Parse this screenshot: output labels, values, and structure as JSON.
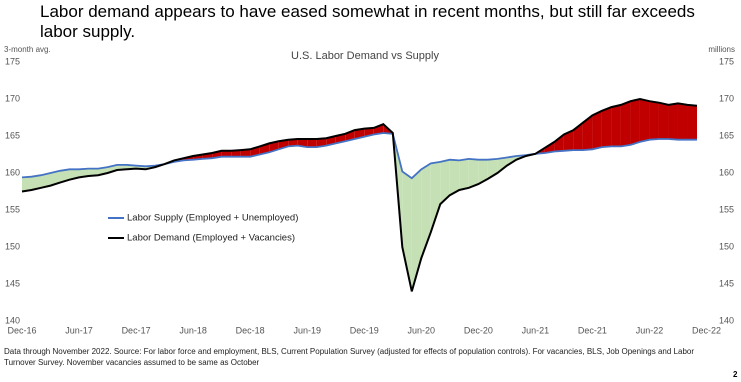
{
  "heading": "Labor demand appears to have eased somewhat in recent months, but still far exceeds labor supply.",
  "chart_data": {
    "type": "line",
    "title": "U.S. Labor Demand vs Supply",
    "y_label": "3-month avg.",
    "y2_label": "millions",
    "x": [
      "Dec-16",
      "Jan-17",
      "Feb-17",
      "Mar-17",
      "Apr-17",
      "May-17",
      "Jun-17",
      "Jul-17",
      "Aug-17",
      "Sep-17",
      "Oct-17",
      "Nov-17",
      "Dec-17",
      "Jan-18",
      "Feb-18",
      "Mar-18",
      "Apr-18",
      "May-18",
      "Jun-18",
      "Jul-18",
      "Aug-18",
      "Sep-18",
      "Oct-18",
      "Nov-18",
      "Dec-18",
      "Jan-19",
      "Feb-19",
      "Mar-19",
      "Apr-19",
      "May-19",
      "Jun-19",
      "Jul-19",
      "Aug-19",
      "Sep-19",
      "Oct-19",
      "Nov-19",
      "Dec-19",
      "Jan-20",
      "Feb-20",
      "Mar-20",
      "Apr-20",
      "May-20",
      "Jun-20",
      "Jul-20",
      "Aug-20",
      "Sep-20",
      "Oct-20",
      "Nov-20",
      "Dec-20",
      "Jan-21",
      "Feb-21",
      "Mar-21",
      "Apr-21",
      "May-21",
      "Jun-21",
      "Jul-21",
      "Aug-21",
      "Sep-21",
      "Oct-21",
      "Nov-21",
      "Dec-21",
      "Jan-22",
      "Feb-22",
      "Mar-22",
      "Apr-22",
      "May-22",
      "Jun-22",
      "Jul-22",
      "Aug-22",
      "Sep-22",
      "Oct-22",
      "Nov-22",
      "Dec-22"
    ],
    "series": [
      {
        "name": "Labor Supply (Employed + Unemployed)",
        "color": "#4472c4",
        "values": [
          159.4,
          159.5,
          159.7,
          160.0,
          160.3,
          160.5,
          160.5,
          160.6,
          160.6,
          160.8,
          161.1,
          161.1,
          161.0,
          160.9,
          161.0,
          161.2,
          161.5,
          161.7,
          161.8,
          161.9,
          162.0,
          162.2,
          162.2,
          162.2,
          162.2,
          162.5,
          162.8,
          163.2,
          163.6,
          163.7,
          163.5,
          163.5,
          163.7,
          164.0,
          164.3,
          164.6,
          164.9,
          165.2,
          165.4,
          165.3,
          160.2,
          159.3,
          160.5,
          161.3,
          161.5,
          161.8,
          161.7,
          161.9,
          161.8,
          161.8,
          161.9,
          162.1,
          162.3,
          162.4,
          162.6,
          162.7,
          162.9,
          163.0,
          163.1,
          163.1,
          163.2,
          163.5,
          163.6,
          163.6,
          163.8,
          164.2,
          164.5,
          164.6,
          164.6,
          164.5,
          164.5,
          164.5,
          null
        ]
      },
      {
        "name": "Labor Demand (Employed + Vacancies)",
        "color": "#000000",
        "values": [
          157.5,
          157.7,
          158.0,
          158.3,
          158.7,
          159.1,
          159.4,
          159.6,
          159.7,
          160.0,
          160.4,
          160.5,
          160.6,
          160.5,
          160.8,
          161.2,
          161.7,
          162.0,
          162.3,
          162.5,
          162.7,
          163.0,
          163.0,
          163.1,
          163.2,
          163.6,
          164.0,
          164.3,
          164.5,
          164.6,
          164.6,
          164.6,
          164.7,
          165.0,
          165.3,
          165.8,
          166.0,
          166.1,
          166.6,
          165.4,
          150.0,
          144.0,
          148.5,
          152.0,
          155.8,
          157.0,
          157.7,
          158.0,
          158.5,
          159.2,
          160.0,
          161.0,
          161.8,
          162.3,
          162.6,
          163.4,
          164.2,
          165.2,
          165.8,
          166.8,
          167.8,
          168.4,
          168.9,
          169.2,
          169.7,
          170.0,
          169.7,
          169.5,
          169.2,
          169.4,
          169.2,
          169.1,
          null
        ]
      }
    ],
    "gap_fill": {
      "demand_above": "#c00000",
      "supply_above": "#c5e0b4"
    },
    "ylim": [
      140,
      175
    ],
    "yticks": [
      140,
      145,
      150,
      155,
      160,
      165,
      170,
      175
    ],
    "xticks": [
      "Dec-16",
      "Jun-17",
      "Dec-17",
      "Jun-18",
      "Dec-18",
      "Jun-19",
      "Dec-19",
      "Jun-20",
      "Dec-20",
      "Jun-21",
      "Dec-21",
      "Jun-22",
      "Dec-22"
    ]
  },
  "footnote": "Data through November 2022. Source: For labor force and employment, BLS, Current Population Survey (adjusted for effects of population controls). For vacancies, BLS, Job Openings and Labor Turnover Survey.  November vacancies assumed to be same as October",
  "page_number": "2"
}
